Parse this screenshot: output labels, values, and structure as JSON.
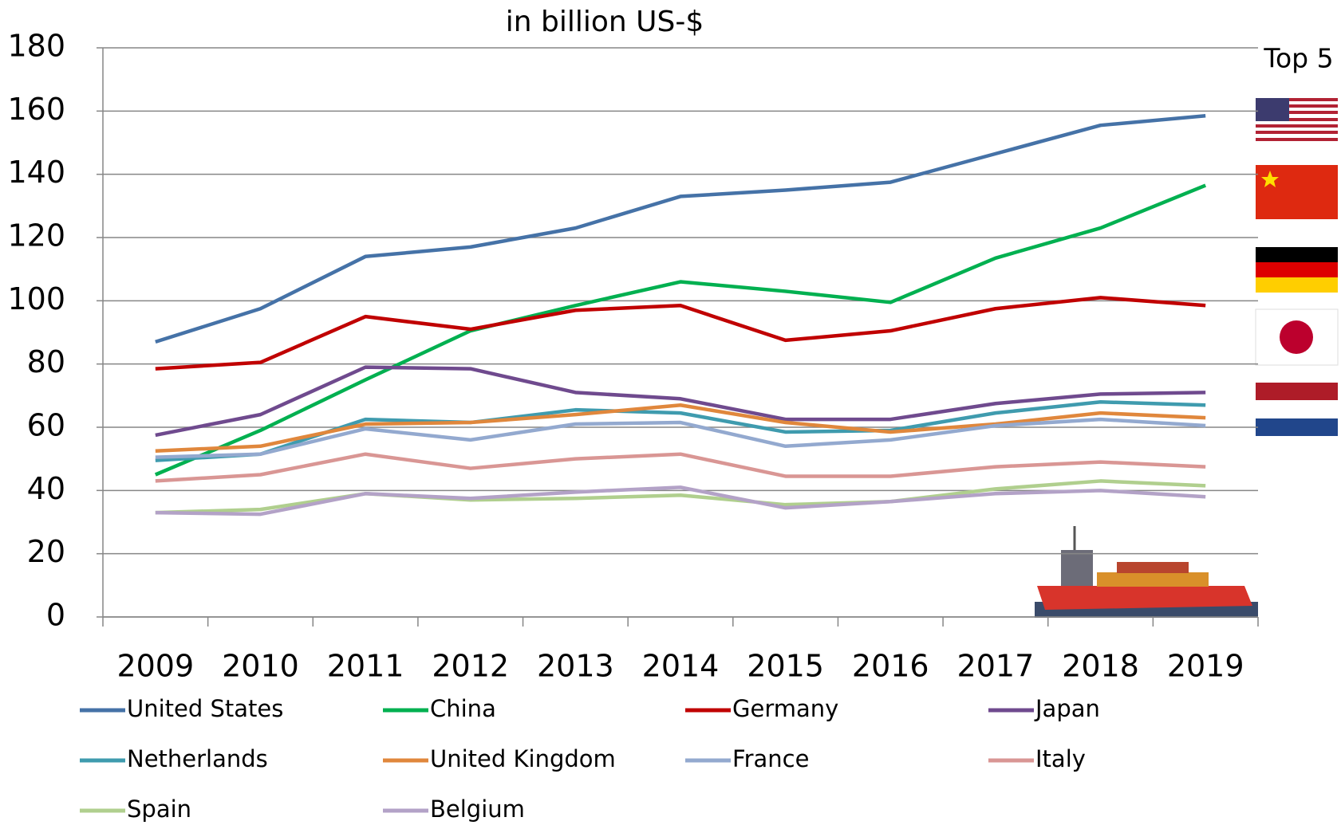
{
  "chart_data": {
    "type": "line",
    "title": "in billion US-$",
    "annotation": "Top 5",
    "categories": [
      "2009",
      "2010",
      "2011",
      "2012",
      "2013",
      "2014",
      "2015",
      "2016",
      "2017",
      "2018",
      "2019"
    ],
    "ylim": [
      0,
      180
    ],
    "yticks": [
      0,
      20,
      40,
      60,
      80,
      100,
      120,
      140,
      160,
      180
    ],
    "grid": true,
    "legend": "bottom",
    "series": [
      {
        "name": "United States",
        "color": "#4572a7",
        "values": [
          87,
          97.5,
          114,
          117,
          123,
          133,
          135,
          137.5,
          146.5,
          155.5,
          158.5
        ]
      },
      {
        "name": "China",
        "color": "#00b050",
        "values": [
          45,
          59,
          75,
          90.5,
          98.5,
          106,
          103,
          99.5,
          113.5,
          123,
          136.5
        ]
      },
      {
        "name": "Germany",
        "color": "#c00000",
        "values": [
          78.5,
          80.5,
          95,
          91,
          97,
          98.5,
          87.5,
          90.5,
          97.5,
          101,
          98.5
        ]
      },
      {
        "name": "Japan",
        "color": "#6f4a8e",
        "values": [
          57.5,
          64,
          79,
          78.5,
          71,
          69,
          62.5,
          62.5,
          67.5,
          70.5,
          71
        ]
      },
      {
        "name": "Netherlands",
        "color": "#3f9bae",
        "values": [
          49.5,
          51.5,
          62.5,
          61.5,
          65.5,
          64.5,
          58.5,
          59,
          64.5,
          68,
          67
        ]
      },
      {
        "name": "United Kingdom",
        "color": "#e0873c",
        "values": [
          52.5,
          54,
          61,
          61.5,
          64,
          67,
          61.5,
          58.5,
          61,
          64.5,
          63
        ]
      },
      {
        "name": "France",
        "color": "#93a9cf",
        "values": [
          50.5,
          51.5,
          59.5,
          56,
          61,
          61.5,
          54,
          56,
          60.5,
          62.5,
          60.5
        ]
      },
      {
        "name": "Italy",
        "color": "#d99694",
        "values": [
          43,
          45,
          51.5,
          47,
          50,
          51.5,
          44.5,
          44.5,
          47.5,
          49,
          47.5
        ]
      },
      {
        "name": "Spain",
        "color": "#b0cf8e",
        "values": [
          33,
          34,
          39,
          37,
          37.5,
          38.5,
          35.5,
          36.5,
          40.5,
          43,
          41.5
        ]
      },
      {
        "name": "Belgium",
        "color": "#b3a2c7",
        "values": [
          33,
          32.5,
          39,
          37.5,
          39.5,
          41,
          34.5,
          36.5,
          39,
          40,
          38
        ]
      }
    ]
  }
}
